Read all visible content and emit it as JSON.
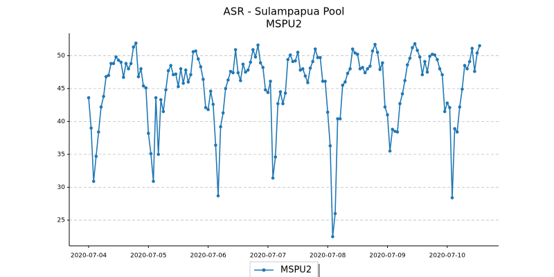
{
  "chart_data": {
    "type": "line",
    "title": "ASR - Sulampapua Pool",
    "subtitle": "MSPU2",
    "categories": [
      "2020-07-04",
      null,
      null,
      null,
      null,
      null,
      null,
      null,
      null,
      null,
      null,
      null,
      null,
      null,
      null,
      null,
      null,
      null,
      null,
      null,
      null,
      null,
      null,
      null,
      "2020-07-05",
      null,
      null,
      null,
      null,
      null,
      null,
      null,
      null,
      null,
      null,
      null,
      null,
      null,
      null,
      null,
      null,
      null,
      null,
      null,
      null,
      null,
      null,
      null,
      "2020-07-06",
      null,
      null,
      null,
      null,
      null,
      null,
      null,
      null,
      null,
      null,
      null,
      null,
      null,
      null,
      null,
      null,
      null,
      null,
      null,
      null,
      null,
      null,
      null,
      "2020-07-07",
      null,
      null,
      null,
      null,
      null,
      null,
      null,
      null,
      null,
      null,
      null,
      null,
      null,
      null,
      null,
      null,
      null,
      null,
      null,
      null,
      null,
      null,
      null,
      "2020-07-08",
      null,
      null,
      null,
      null,
      null,
      null,
      null,
      null,
      null,
      null,
      null,
      null,
      null,
      null,
      null,
      null,
      null,
      null,
      null,
      null,
      null,
      null,
      null,
      "2020-07-09",
      null,
      null,
      null,
      null,
      null,
      null,
      null,
      null,
      null,
      null,
      null,
      null,
      null,
      null,
      null,
      null,
      null,
      null,
      null,
      null,
      null,
      null,
      null,
      "2020-07-10",
      null,
      null,
      null,
      null,
      null,
      null,
      null,
      null,
      null,
      null,
      null,
      null,
      null
    ],
    "series": [
      {
        "name": "MSPU2",
        "color": "#1f77b4",
        "values": [
          43.6,
          39.0,
          30.9,
          34.7,
          38.4,
          42.2,
          43.8,
          46.8,
          47.0,
          48.8,
          48.8,
          49.8,
          49.3,
          49.0,
          46.7,
          48.8,
          48.0,
          48.8,
          51.3,
          51.9,
          46.8,
          48.0,
          45.4,
          45.1,
          38.2,
          35.1,
          30.9,
          43.6,
          35.0,
          43.3,
          41.5,
          44.8,
          47.7,
          48.5,
          47.1,
          47.2,
          45.3,
          48.0,
          45.8,
          47.8,
          46.0,
          47.1,
          50.6,
          50.7,
          49.5,
          48.3,
          46.4,
          42.1,
          41.8,
          44.6,
          42.6,
          36.4,
          28.7,
          39.2,
          41.3,
          45.0,
          46.3,
          47.6,
          47.4,
          50.9,
          47.4,
          46.2,
          48.7,
          47.5,
          47.8,
          49.0,
          50.9,
          49.8,
          51.6,
          48.9,
          48.2,
          44.8,
          44.4,
          46.1,
          31.4,
          34.6,
          42.7,
          44.5,
          42.7,
          44.3,
          49.4,
          50.1,
          49.1,
          49.2,
          50.5,
          47.8,
          48.0,
          46.9,
          45.9,
          48.1,
          49.1,
          51.0,
          49.7,
          49.7,
          46.1,
          46.1,
          41.4,
          36.3,
          22.5,
          26.0,
          40.4,
          40.4,
          45.5,
          46.0,
          47.3,
          48.0,
          51.0,
          50.4,
          50.2,
          48.0,
          48.2,
          47.4,
          48.0,
          48.4,
          50.7,
          51.7,
          50.5,
          47.9,
          48.9,
          42.2,
          41.0,
          35.5,
          38.8,
          38.5,
          38.4,
          42.7,
          44.2,
          46.2,
          48.6,
          49.6,
          51.2,
          51.8,
          50.8,
          49.8,
          47.1,
          49.1,
          47.5,
          49.9,
          50.2,
          50.1,
          49.4,
          48.0,
          47.1,
          41.5,
          42.8,
          42.1,
          28.4,
          38.9,
          38.4,
          42.2,
          44.9,
          48.5,
          48.0,
          49.1,
          51.1,
          47.6,
          50.4,
          51.5
        ]
      }
    ],
    "ylim": [
      21.1,
      53.4
    ],
    "yticks": [
      25,
      30,
      35,
      40,
      45,
      50
    ],
    "grid": true,
    "legend": "bottom"
  }
}
